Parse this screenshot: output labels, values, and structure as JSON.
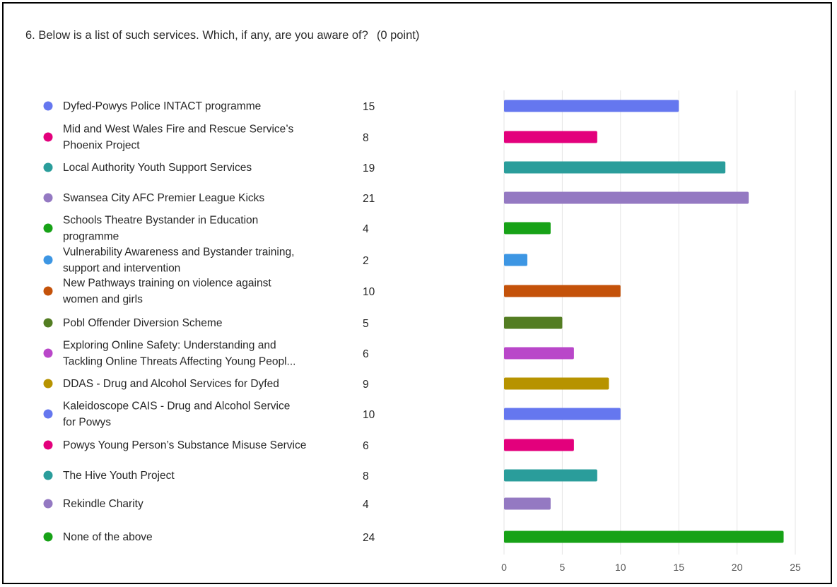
{
  "question": {
    "text": "6. Below is a list of such services. Which, if any, are you aware of?",
    "points": "(0 point)"
  },
  "chart_data": {
    "type": "bar",
    "orientation": "horizontal",
    "title": "",
    "xlabel": "",
    "ylabel": "",
    "xlim": [
      0,
      25
    ],
    "ticks": [
      0,
      5,
      10,
      15,
      20,
      25
    ],
    "grid": true,
    "legend": "left",
    "categories": [
      [
        "Dyfed-Powys Police INTACT programme"
      ],
      [
        "Mid and West Wales Fire and Rescue Service’s",
        "Phoenix Project"
      ],
      [
        "Local Authority Youth Support Services"
      ],
      [
        "Swansea City AFC Premier League Kicks"
      ],
      [
        "Schools Theatre Bystander in Education",
        "programme"
      ],
      [
        "Vulnerability Awareness and Bystander training,",
        "support and intervention"
      ],
      [
        "New Pathways training on violence against",
        "women and girls"
      ],
      [
        "Pobl Offender Diversion Scheme"
      ],
      [
        "Exploring Online Safety: Understanding and",
        "Tackling Online Threats Affecting Young Peopl..."
      ],
      [
        "DDAS - Drug and Alcohol Services for Dyfed"
      ],
      [
        "Kaleidoscope CAIS - Drug and Alcohol Service",
        "for Powys"
      ],
      [
        "Powys Young Person’s Substance Misuse Service"
      ],
      [
        "The Hive Youth Project"
      ],
      [
        "Rekindle Charity"
      ],
      [
        "None of the above"
      ]
    ],
    "values": [
      15,
      8,
      19,
      21,
      4,
      2,
      10,
      5,
      6,
      9,
      10,
      6,
      8,
      4,
      24
    ],
    "colors": [
      "#6577ef",
      "#e3007c",
      "#2a9d9b",
      "#9479c2",
      "#17a217",
      "#3d96e3",
      "#c4520a",
      "#537d22",
      "#b947c9",
      "#b79300",
      "#6577ef",
      "#e3007c",
      "#2a9d9b",
      "#9479c2",
      "#17a217"
    ]
  }
}
